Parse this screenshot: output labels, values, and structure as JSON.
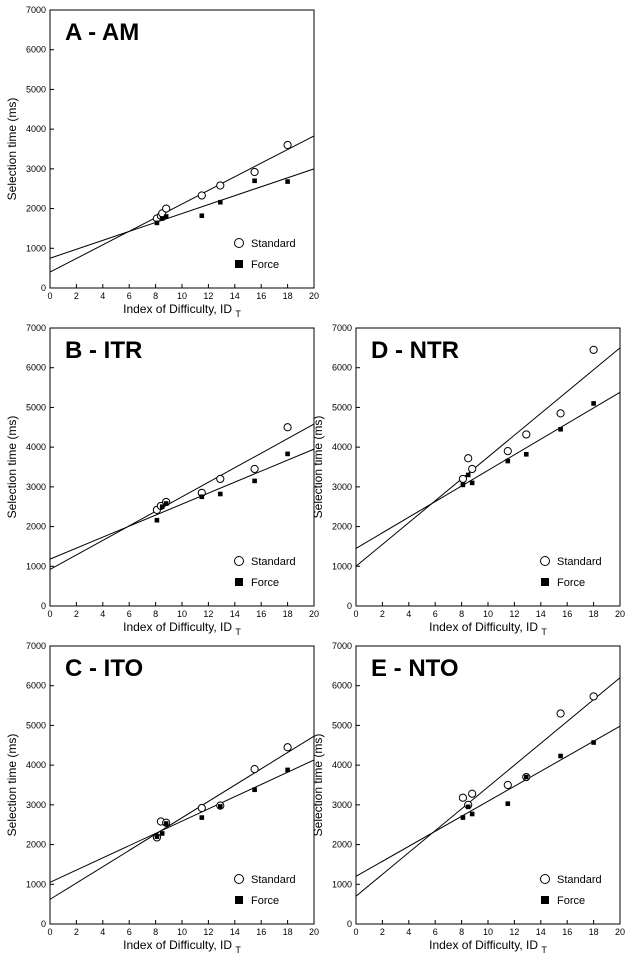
{
  "figure": {
    "xlabel": "Index of Difficulty, ID",
    "xlabel_sub": "T",
    "ylabel": "Selection time (ms)",
    "legend": {
      "standard": "Standard",
      "force": "Force"
    }
  },
  "chart_data": [
    {
      "type": "scatter",
      "title": "A - AM",
      "xlabel": "Index of Difficulty, ID T",
      "ylabel": "Selection time (ms)",
      "xlim": [
        0,
        20
      ],
      "ylim": [
        0,
        7000
      ],
      "xticks": [
        0,
        2,
        4,
        6,
        8,
        10,
        12,
        14,
        16,
        18,
        20
      ],
      "yticks": [
        0,
        1000,
        2000,
        3000,
        4000,
        5000,
        6000,
        7000
      ],
      "grid": false,
      "legend_position": "bottom-right",
      "series": [
        {
          "name": "Standard",
          "marker": "open-circle",
          "points": [
            [
              8.1,
              1750
            ],
            [
              8.4,
              1820
            ],
            [
              8.5,
              1880
            ],
            [
              8.8,
              2000
            ],
            [
              11.5,
              2330
            ],
            [
              12.9,
              2580
            ],
            [
              15.5,
              2920
            ],
            [
              18.0,
              3600
            ]
          ],
          "fit": [
            [
              0,
              400
            ],
            [
              20,
              3830
            ]
          ]
        },
        {
          "name": "Force",
          "marker": "filled-square",
          "points": [
            [
              8.1,
              1640
            ],
            [
              8.5,
              1750
            ],
            [
              8.8,
              1800
            ],
            [
              11.5,
              1820
            ],
            [
              12.9,
              2160
            ],
            [
              15.5,
              2700
            ],
            [
              18.0,
              2680
            ]
          ],
          "fit": [
            [
              0,
              750
            ],
            [
              20,
              3000
            ]
          ]
        }
      ]
    },
    {
      "type": "scatter",
      "title": "B - ITR",
      "xlabel": "Index of Difficulty, ID T",
      "ylabel": "Selection time (ms)",
      "xlim": [
        0,
        20
      ],
      "ylim": [
        0,
        7000
      ],
      "xticks": [
        0,
        2,
        4,
        6,
        8,
        10,
        12,
        14,
        16,
        18,
        20
      ],
      "yticks": [
        0,
        1000,
        2000,
        3000,
        4000,
        5000,
        6000,
        7000
      ],
      "grid": false,
      "legend_position": "bottom-right",
      "series": [
        {
          "name": "Standard",
          "marker": "open-circle",
          "points": [
            [
              8.1,
              2420
            ],
            [
              8.4,
              2520
            ],
            [
              8.8,
              2620
            ],
            [
              11.5,
              2850
            ],
            [
              12.9,
              3200
            ],
            [
              15.5,
              3450
            ],
            [
              18.0,
              4500
            ]
          ],
          "fit": [
            [
              0,
              920
            ],
            [
              20,
              4580
            ]
          ]
        },
        {
          "name": "Force",
          "marker": "filled-square",
          "points": [
            [
              8.1,
              2160
            ],
            [
              8.5,
              2500
            ],
            [
              8.8,
              2580
            ],
            [
              11.5,
              2750
            ],
            [
              12.9,
              2820
            ],
            [
              15.5,
              3150
            ],
            [
              18.0,
              3830
            ]
          ],
          "fit": [
            [
              0,
              1180
            ],
            [
              20,
              3950
            ]
          ]
        }
      ]
    },
    {
      "type": "scatter",
      "title": "D - NTR",
      "xlabel": "Index of Difficulty, ID T",
      "ylabel": "Selection time (ms)",
      "xlim": [
        0,
        20
      ],
      "ylim": [
        0,
        7000
      ],
      "xticks": [
        0,
        2,
        4,
        6,
        8,
        10,
        12,
        14,
        16,
        18,
        20
      ],
      "yticks": [
        0,
        1000,
        2000,
        3000,
        4000,
        5000,
        6000,
        7000
      ],
      "grid": false,
      "legend_position": "bottom-right",
      "series": [
        {
          "name": "Standard",
          "marker": "open-circle",
          "points": [
            [
              8.1,
              3200
            ],
            [
              8.5,
              3720
            ],
            [
              8.8,
              3450
            ],
            [
              11.5,
              3900
            ],
            [
              12.9,
              4320
            ],
            [
              15.5,
              4850
            ],
            [
              18.0,
              6450
            ]
          ],
          "fit": [
            [
              0,
              1000
            ],
            [
              20,
              6500
            ]
          ]
        },
        {
          "name": "Force",
          "marker": "filled-square",
          "points": [
            [
              8.1,
              3050
            ],
            [
              8.5,
              3300
            ],
            [
              8.8,
              3100
            ],
            [
              11.5,
              3650
            ],
            [
              12.9,
              3820
            ],
            [
              15.5,
              4450
            ],
            [
              18.0,
              5100
            ]
          ],
          "fit": [
            [
              0,
              1450
            ],
            [
              20,
              5380
            ]
          ]
        }
      ]
    },
    {
      "type": "scatter",
      "title": "C - ITO",
      "xlabel": "Index of Difficulty, ID T",
      "ylabel": "Selection time (ms)",
      "xlim": [
        0,
        20
      ],
      "ylim": [
        0,
        7000
      ],
      "xticks": [
        0,
        2,
        4,
        6,
        8,
        10,
        12,
        14,
        16,
        18,
        20
      ],
      "yticks": [
        0,
        1000,
        2000,
        3000,
        4000,
        5000,
        6000,
        7000
      ],
      "grid": false,
      "legend_position": "bottom-right",
      "series": [
        {
          "name": "Standard",
          "marker": "open-circle",
          "points": [
            [
              8.1,
              2180
            ],
            [
              8.4,
              2580
            ],
            [
              8.8,
              2550
            ],
            [
              11.5,
              2920
            ],
            [
              12.9,
              2980
            ],
            [
              15.5,
              3900
            ],
            [
              18.0,
              4450
            ]
          ],
          "fit": [
            [
              0,
              620
            ],
            [
              20,
              4730
            ]
          ]
        },
        {
          "name": "Force",
          "marker": "filled-square",
          "points": [
            [
              8.1,
              2200
            ],
            [
              8.5,
              2280
            ],
            [
              8.8,
              2530
            ],
            [
              11.5,
              2680
            ],
            [
              12.9,
              2960
            ],
            [
              15.5,
              3380
            ],
            [
              18.0,
              3880
            ]
          ],
          "fit": [
            [
              0,
              1050
            ],
            [
              20,
              4130
            ]
          ]
        }
      ]
    },
    {
      "type": "scatter",
      "title": "E - NTO",
      "xlabel": "Index of Difficulty, ID T",
      "ylabel": "Selection time (ms)",
      "xlim": [
        0,
        20
      ],
      "ylim": [
        0,
        7000
      ],
      "xticks": [
        0,
        2,
        4,
        6,
        8,
        10,
        12,
        14,
        16,
        18,
        20
      ],
      "yticks": [
        0,
        1000,
        2000,
        3000,
        4000,
        5000,
        6000,
        7000
      ],
      "grid": false,
      "legend_position": "bottom-right",
      "series": [
        {
          "name": "Standard",
          "marker": "open-circle",
          "points": [
            [
              8.1,
              3180
            ],
            [
              8.5,
              3000
            ],
            [
              8.8,
              3280
            ],
            [
              11.5,
              3500
            ],
            [
              12.9,
              3700
            ],
            [
              15.5,
              5300
            ],
            [
              18.0,
              5730
            ]
          ],
          "fit": [
            [
              0,
              700
            ],
            [
              20,
              6200
            ]
          ]
        },
        {
          "name": "Force",
          "marker": "filled-square",
          "points": [
            [
              8.1,
              2680
            ],
            [
              8.5,
              2950
            ],
            [
              8.8,
              2770
            ],
            [
              11.5,
              3030
            ],
            [
              12.9,
              3700
            ],
            [
              15.5,
              4230
            ],
            [
              18.0,
              4570
            ]
          ],
          "fit": [
            [
              0,
              1200
            ],
            [
              20,
              4980
            ]
          ]
        }
      ]
    }
  ]
}
